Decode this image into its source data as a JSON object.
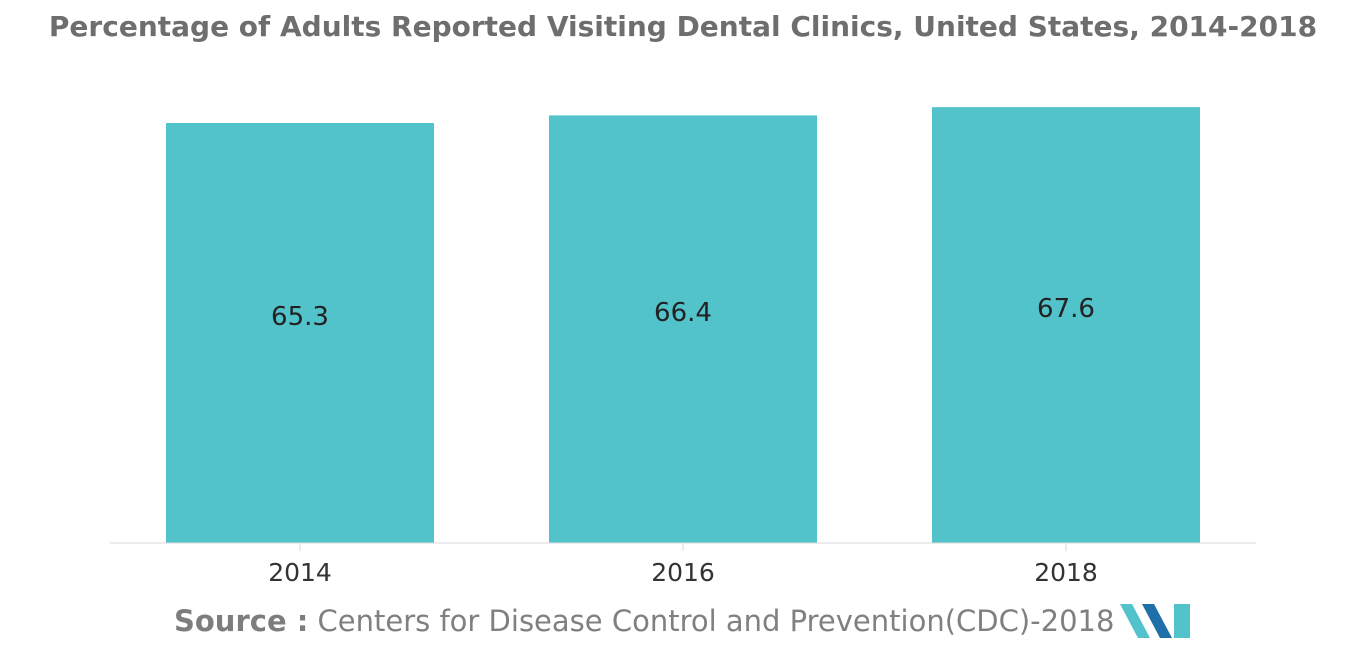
{
  "chart_data": {
    "type": "bar",
    "title": "Percentage of Adults Reported Visiting Dental Clinics, United States, 2014-2018",
    "categories": [
      "2014",
      "2016",
      "2018"
    ],
    "values": [
      65.3,
      66.4,
      67.6
    ],
    "data_labels": [
      "65.3",
      "66.4",
      "67.6"
    ],
    "xlabel": "",
    "ylabel": "",
    "grid": false,
    "legend": "none",
    "bar_color": "#52c3ca",
    "label_color": "#222222",
    "tick_color": "#333333",
    "axis_color": "#d9d9d9"
  },
  "source": {
    "label": "Source :",
    "text": "Centers for Disease Control and Prevention(CDC)-2018"
  },
  "logo": {
    "icon": "mordor-intelligence-logo-icon",
    "colors": [
      "#52c3ca",
      "#1f6fa8",
      "#2d4f7c"
    ]
  }
}
